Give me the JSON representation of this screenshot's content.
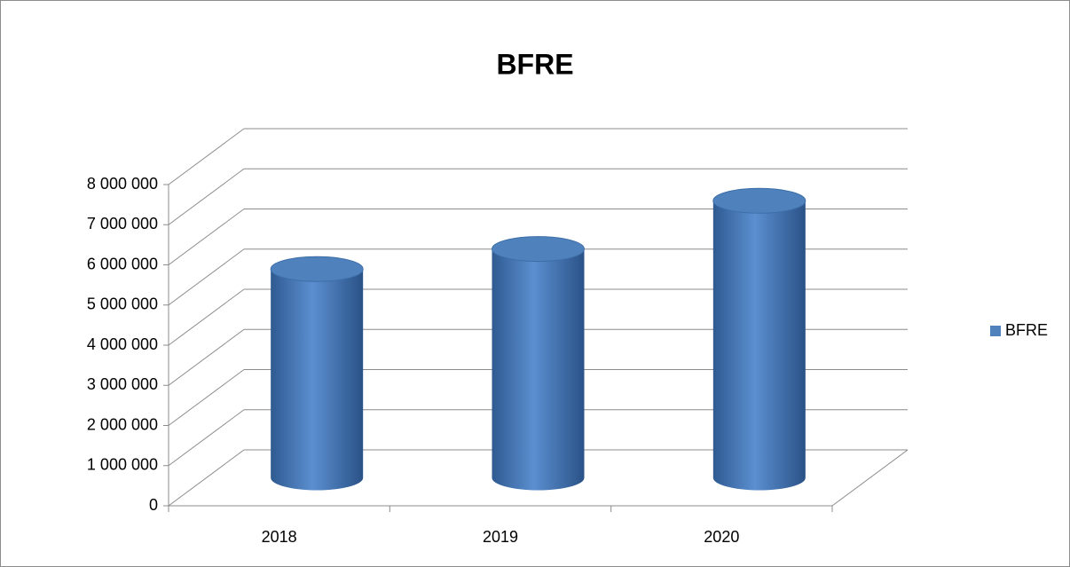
{
  "chart_data": {
    "type": "bar3d",
    "title": "BFRE",
    "categories": [
      "2018",
      "2019",
      "2020"
    ],
    "series": [
      {
        "name": "BFRE",
        "color": "#4f81bd",
        "values": [
          5200000,
          5700000,
          6900000
        ]
      }
    ],
    "ylim": [
      0,
      8000000
    ],
    "yticks": [
      0,
      {
        "value": 1000000,
        "label": "1 000 000"
      },
      {
        "value": 2000000,
        "label": "2 000 000"
      },
      {
        "value": 3000000,
        "label": "3 000 000"
      },
      {
        "value": 4000000,
        "label": "4 000 000"
      },
      {
        "value": 5000000,
        "label": "5 000 000"
      },
      {
        "value": 6000000,
        "label": "6 000 000"
      },
      {
        "value": 7000000,
        "label": "7 000 000"
      },
      {
        "value": 8000000,
        "label": "8 000 000"
      }
    ],
    "grid": true,
    "legend": "right"
  }
}
